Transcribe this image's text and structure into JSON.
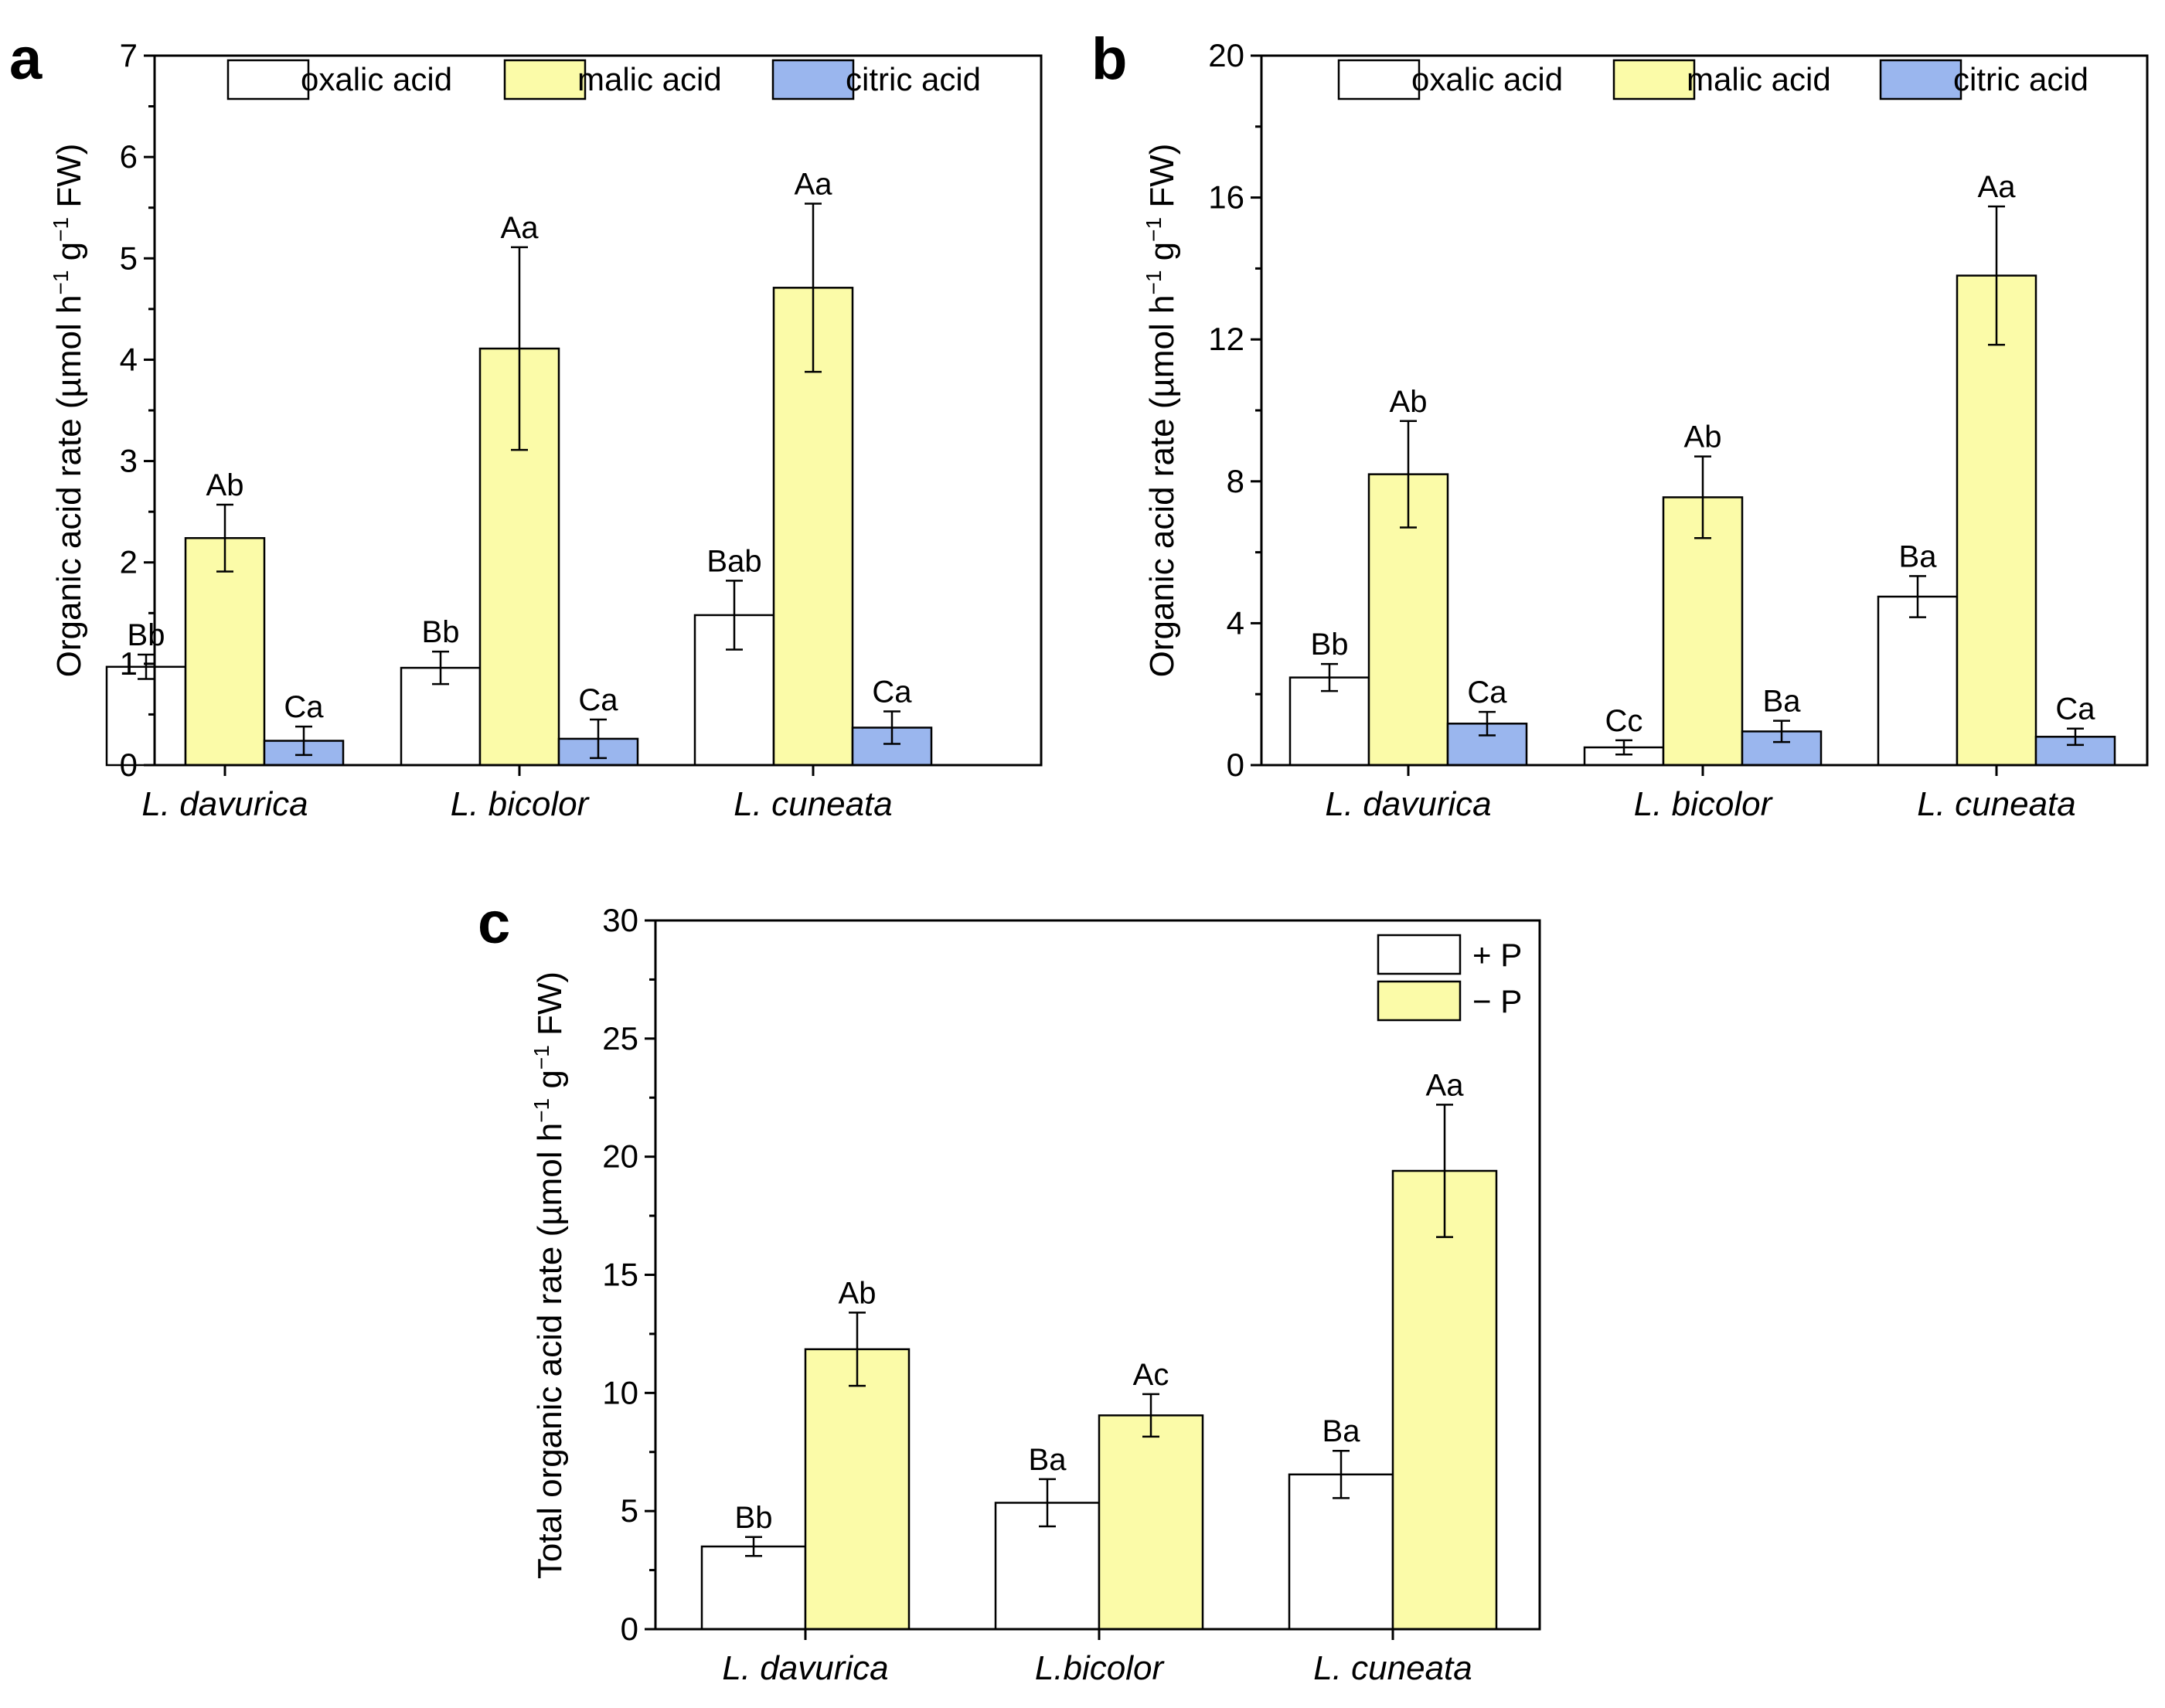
{
  "chart_data": [
    {
      "panel": "a",
      "type": "bar",
      "ylabel_prefix": "Organic acid rate (µmol h",
      "ylabel_sup1": "−1",
      "ylabel_mid": " g",
      "ylabel_sup2": "−1",
      "ylabel_suffix": " FW)",
      "ylim": [
        0,
        7
      ],
      "yticks": [
        "0",
        "1",
        "2",
        "3",
        "4",
        "5",
        "6",
        "7"
      ],
      "categories": [
        "L. davurica",
        "L. bicolor",
        "L. cuneata"
      ],
      "series": [
        {
          "name": "oxalic acid",
          "color": "#ffffff",
          "values": [
            0.97,
            0.96,
            1.48
          ],
          "errors": [
            0.12,
            0.16,
            0.34
          ],
          "labels": [
            "Bb",
            "Bb",
            "Bab"
          ]
        },
        {
          "name": "malic acid",
          "color": "#fbfba8",
          "values": [
            2.24,
            4.11,
            4.71
          ],
          "errors": [
            0.33,
            1.0,
            0.83
          ],
          "labels": [
            "Ab",
            "Aa",
            "Aa"
          ]
        },
        {
          "name": "citric acid",
          "color": "#9ab6ee",
          "values": [
            0.24,
            0.26,
            0.37
          ],
          "errors": [
            0.14,
            0.19,
            0.16
          ],
          "labels": [
            "Ca",
            "Ca",
            "Ca"
          ]
        }
      ]
    },
    {
      "panel": "b",
      "type": "bar",
      "ylabel_prefix": "Organic acid rate (µmol h",
      "ylabel_sup1": "−1",
      "ylabel_mid": " g",
      "ylabel_sup2": "−1",
      "ylabel_suffix": " FW)",
      "ylim": [
        0,
        20
      ],
      "yticks": [
        "0",
        "4",
        "8",
        "12",
        "16",
        "20"
      ],
      "categories": [
        "L. davurica",
        "L. bicolor",
        "L. cuneata"
      ],
      "series": [
        {
          "name": "oxalic acid",
          "color": "#ffffff",
          "values": [
            2.47,
            0.5,
            4.75
          ],
          "errors": [
            0.38,
            0.2,
            0.58
          ],
          "labels": [
            "Bb",
            "Cc",
            "Ba"
          ]
        },
        {
          "name": "malic acid",
          "color": "#fbfba8",
          "values": [
            8.2,
            7.55,
            13.8
          ],
          "errors": [
            1.5,
            1.15,
            1.95
          ],
          "labels": [
            "Ab",
            "Ab",
            "Aa"
          ]
        },
        {
          "name": "citric acid",
          "color": "#9ab6ee",
          "values": [
            1.17,
            0.95,
            0.8
          ],
          "errors": [
            0.33,
            0.3,
            0.23
          ],
          "labels": [
            "Ca",
            "Ba",
            "Ca"
          ]
        }
      ]
    },
    {
      "panel": "c",
      "type": "bar",
      "ylabel_prefix": "Total organic acid rate (µmol h",
      "ylabel_sup1": "−1",
      "ylabel_mid": " g",
      "ylabel_sup2": "−1",
      "ylabel_suffix": " FW)",
      "ylim": [
        0,
        30
      ],
      "yticks": [
        "0",
        "5",
        "10",
        "15",
        "20",
        "25",
        "30"
      ],
      "categories": [
        "L. davurica",
        "L.bicolor",
        "L. cuneata"
      ],
      "series": [
        {
          "name": "+ P",
          "color": "#ffffff",
          "values": [
            3.5,
            5.35,
            6.55
          ],
          "errors": [
            0.4,
            1.0,
            1.0
          ],
          "labels": [
            "Bb",
            "Ba",
            "Ba"
          ]
        },
        {
          "name": "− P",
          "color": "#fbfba8",
          "values": [
            11.85,
            9.05,
            19.4
          ],
          "errors": [
            1.55,
            0.9,
            2.8
          ],
          "labels": [
            "Ab",
            "Ac",
            "Aa"
          ]
        }
      ]
    }
  ]
}
